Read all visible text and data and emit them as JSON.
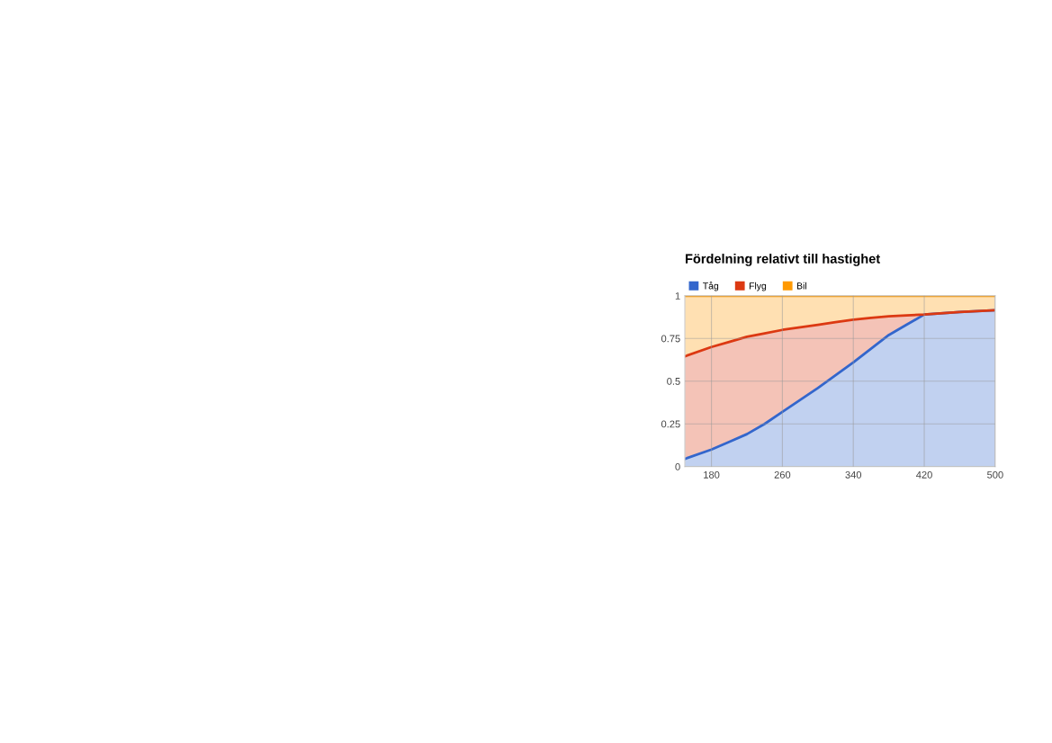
{
  "chart_data": {
    "type": "area",
    "stacked": true,
    "title": "Fördelning relativt till hastighet",
    "x": [
      150,
      180,
      200,
      220,
      240,
      260,
      280,
      300,
      320,
      340,
      360,
      380,
      400,
      420,
      460,
      500
    ],
    "series": [
      {
        "name": "Tåg",
        "color": "#3366cc",
        "values": [
          0.045,
          0.1,
          0.145,
          0.19,
          0.25,
          0.32,
          0.39,
          0.46,
          0.535,
          0.61,
          0.69,
          0.77,
          0.83,
          0.89,
          0.905,
          0.915
        ]
      },
      {
        "name": "Flyg",
        "color": "#dc3912",
        "values": [
          0.6,
          0.6,
          0.585,
          0.57,
          0.53,
          0.48,
          0.425,
          0.37,
          0.31,
          0.25,
          0.18,
          0.11,
          0.055,
          0,
          0,
          0
        ]
      },
      {
        "name": "Bil",
        "color": "#ff9900",
        "values": [
          0.355,
          0.3,
          0.27,
          0.24,
          0.22,
          0.2,
          0.185,
          0.17,
          0.155,
          0.14,
          0.13,
          0.12,
          0.115,
          0.11,
          0.095,
          0.085
        ]
      }
    ],
    "xlim": [
      150,
      500
    ],
    "xticks": [
      180,
      260,
      340,
      420,
      500
    ],
    "ylim": [
      0,
      1
    ],
    "yticks": [
      0,
      0.25,
      0.5,
      0.75,
      1
    ],
    "grid": true,
    "legend": "top left"
  }
}
